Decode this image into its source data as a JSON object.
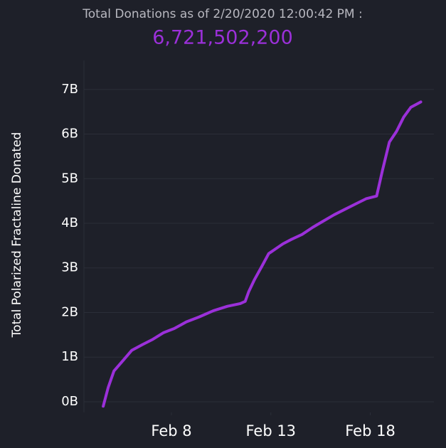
{
  "chart_data": {
    "type": "line",
    "title": "Total Donations as of 2/20/2020 12:00:42 PM :",
    "subtitle": "6,721,502,200",
    "ylabel": "Total Polarized Fractaline Donated",
    "x": [
      4.57,
      4.82,
      5.11,
      5.54,
      6.0,
      6.54,
      7.07,
      7.61,
      8.14,
      8.75,
      9.39,
      10.11,
      10.82,
      11.46,
      11.71,
      11.89,
      12.18,
      12.54,
      12.89,
      13.25,
      13.61,
      14.04,
      14.57,
      15.11,
      15.64,
      16.18,
      16.71,
      17.25,
      17.79,
      18.32,
      18.61,
      18.96,
      19.32,
      19.68,
      20.04,
      20.54
    ],
    "series": [
      {
        "name": "Total Polarized Fractaline Donated",
        "color": "#9b30d9",
        "values": [
          -0.1,
          0.32,
          0.69,
          0.91,
          1.15,
          1.28,
          1.4,
          1.55,
          1.64,
          1.79,
          1.9,
          2.04,
          2.14,
          2.2,
          2.25,
          2.47,
          2.74,
          3.03,
          3.32,
          3.43,
          3.54,
          3.64,
          3.75,
          3.91,
          4.05,
          4.19,
          4.31,
          4.43,
          4.55,
          4.61,
          5.18,
          5.82,
          6.06,
          6.38,
          6.6,
          6.72
        ]
      }
    ],
    "xlim": [
      3.6,
      21.2
    ],
    "xticks": [
      {
        "value": 8,
        "label": "Feb 8"
      },
      {
        "value": 13,
        "label": "Feb 13"
      },
      {
        "value": 18,
        "label": "Feb 18"
      }
    ],
    "ylim": [
      -0.24,
      7.65
    ],
    "yticks": [
      {
        "value": 0,
        "label": "0B"
      },
      {
        "value": 1,
        "label": "1B"
      },
      {
        "value": 2,
        "label": "2B"
      },
      {
        "value": 3,
        "label": "3B"
      },
      {
        "value": 4,
        "label": "4B"
      },
      {
        "value": 5,
        "label": "5B"
      },
      {
        "value": 6,
        "label": "6B"
      },
      {
        "value": 7,
        "label": "7B"
      }
    ],
    "grid": true
  }
}
